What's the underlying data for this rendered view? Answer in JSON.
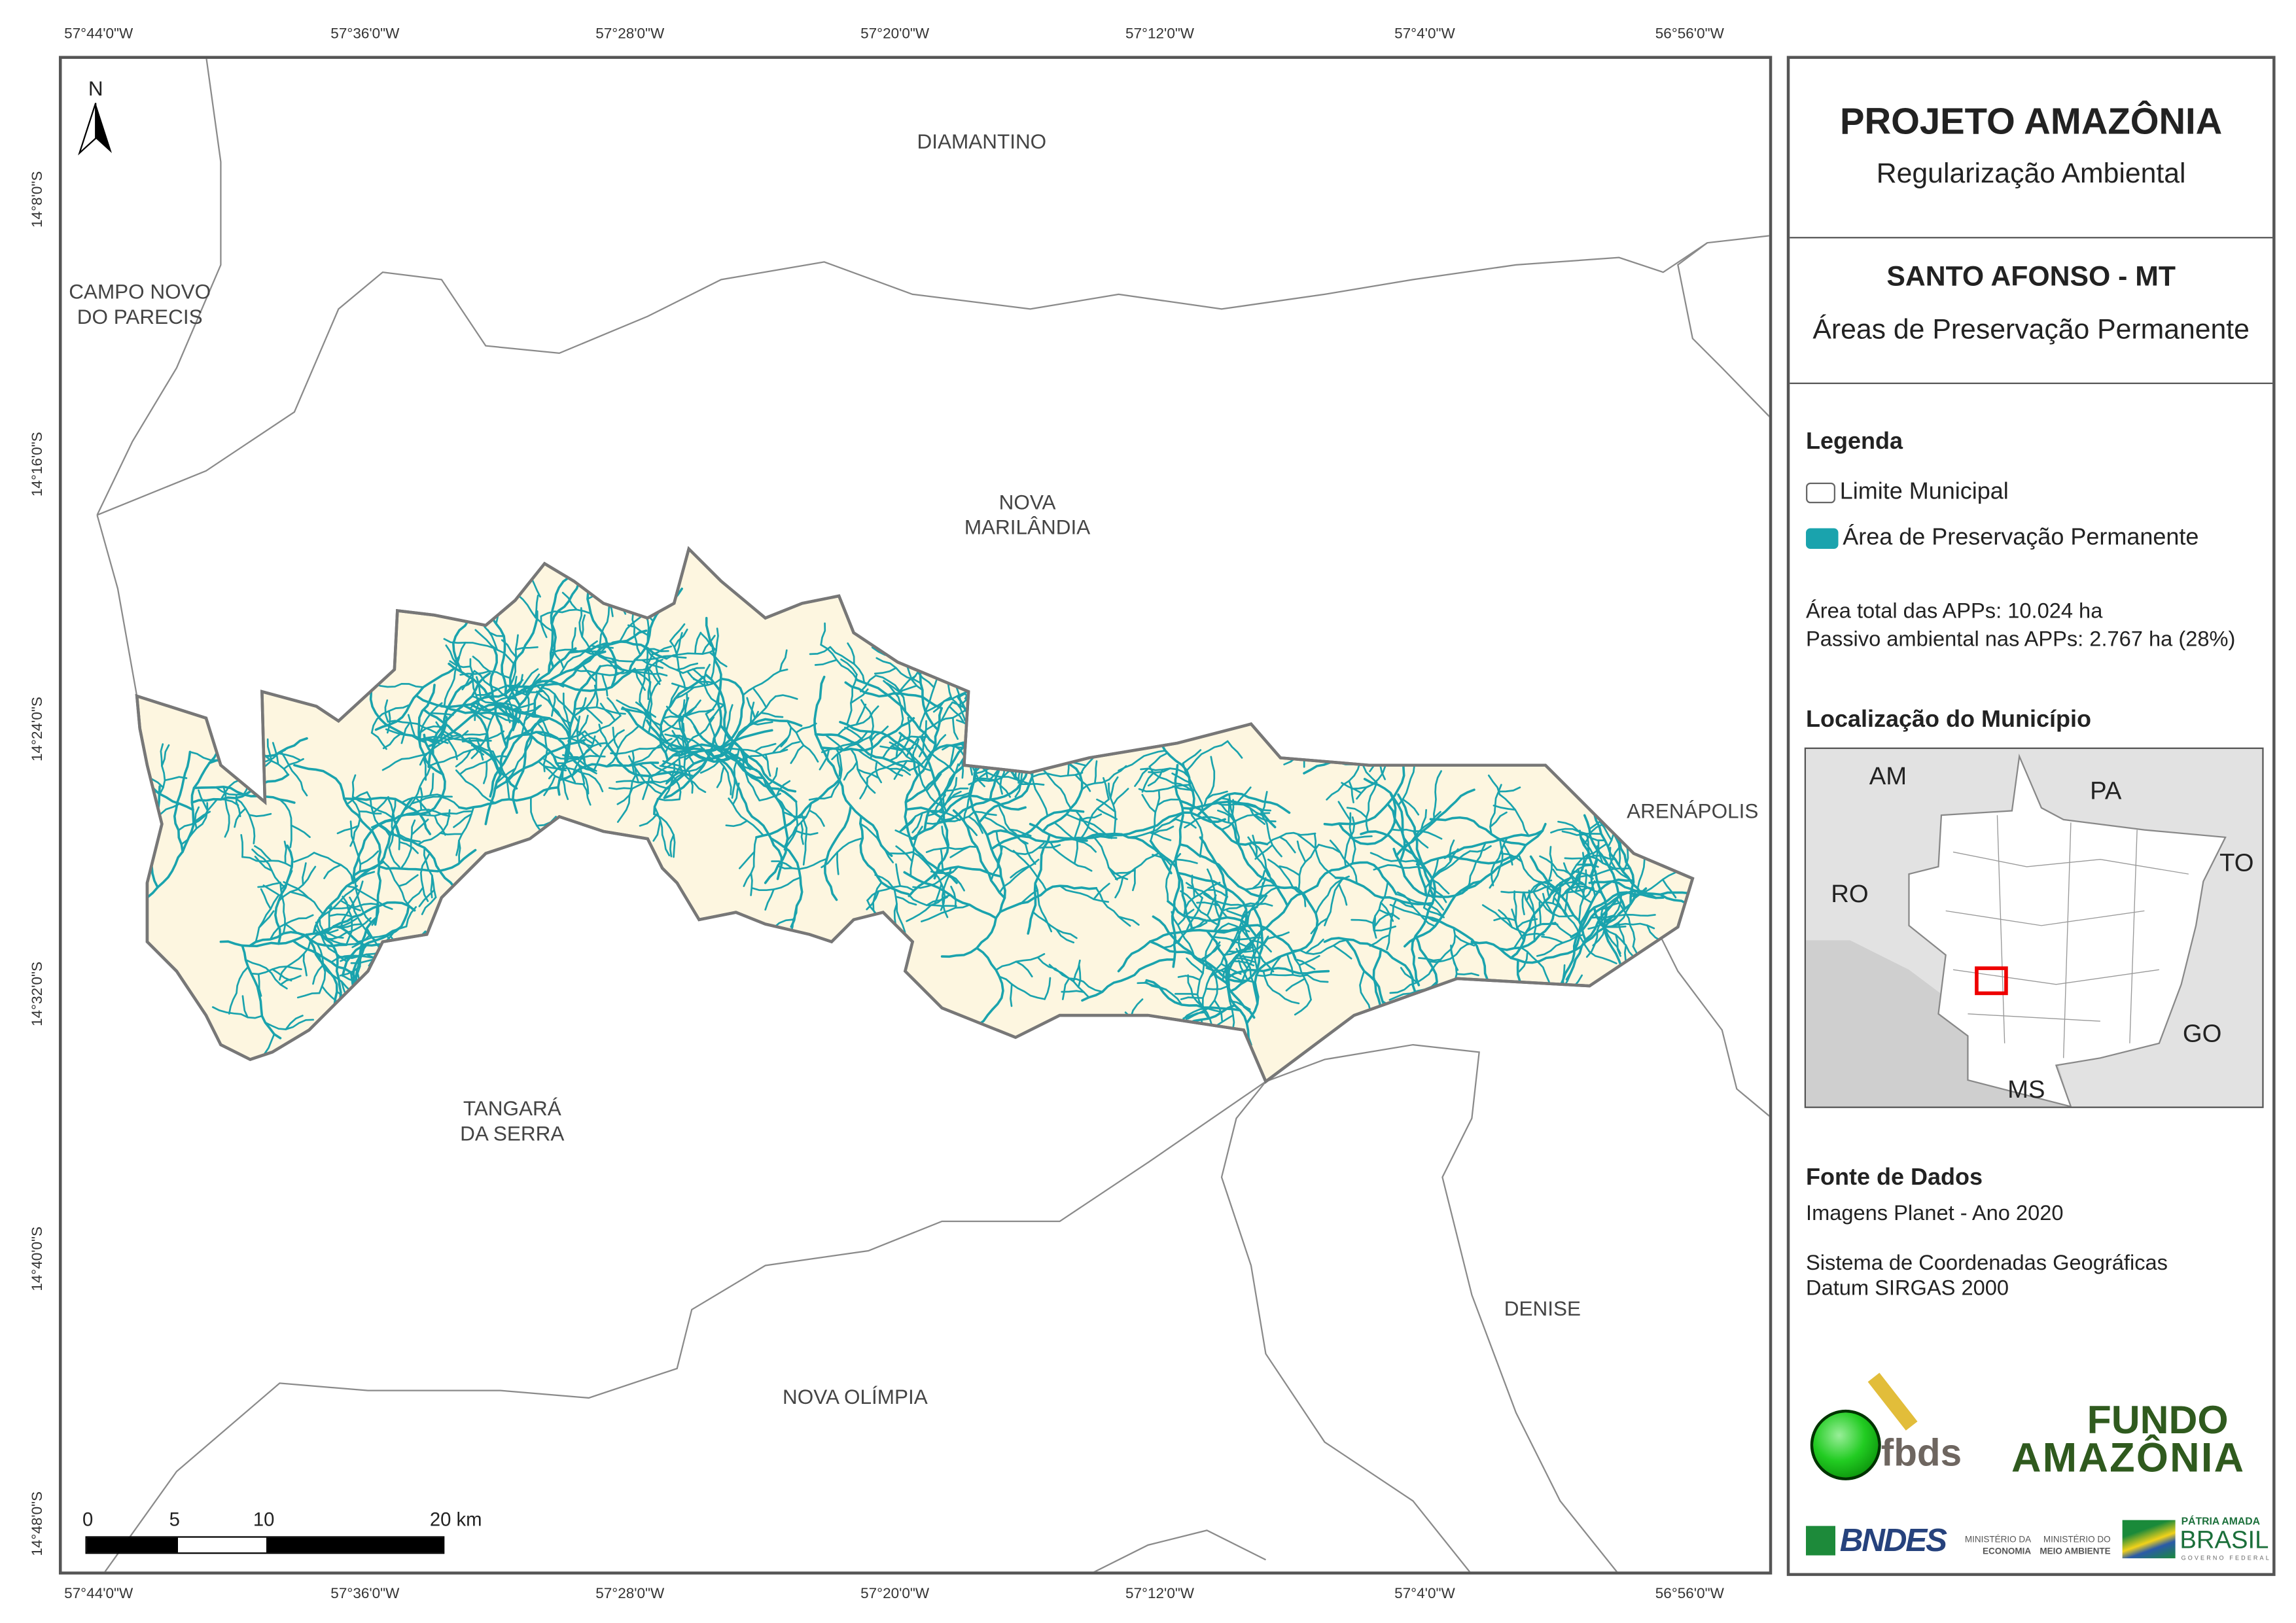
{
  "map": {
    "top_ticks": [
      "57°44'0\"W",
      "57°36'0\"W",
      "57°28'0\"W",
      "57°20'0\"W",
      "57°12'0\"W",
      "57°4'0\"W",
      "56°56'0\"W"
    ],
    "left_ticks": [
      "14°8'0\"S",
      "14°16'0\"S",
      "14°24'0\"S",
      "14°32'0\"S",
      "14°40'0\"S",
      "14°48'0\"S"
    ],
    "north_label": "N",
    "municipalities": {
      "diamantino": "DIAMANTINO",
      "campo_novo_1": "CAMPO NOVO",
      "campo_novo_2": "DO PARECIS",
      "nova_marilandia_1": "NOVA",
      "nova_marilandia_2": "MARILÂNDIA",
      "arenapolis": "ARENÁPOLIS",
      "tangara_1": "TANGARÁ",
      "tangara_2": "DA SERRA",
      "denise": "DENISE",
      "nova_olimpia": "NOVA OLÍMPIA"
    },
    "scale_bar": {
      "labels": [
        "0",
        "5",
        "10",
        "20 km"
      ]
    },
    "colors": {
      "municipality_fill": "#fdf6e0",
      "app_stream": "#1aa3ad",
      "boundary": "#888888"
    }
  },
  "panel": {
    "title": "PROJETO AMAZÔNIA",
    "subtitle": "Regularização Ambiental",
    "municipality": "SANTO AFONSO - MT",
    "theme": "Áreas de Preservação Permanente",
    "legend_title": "Legenda",
    "legend_items": [
      {
        "label": "Limite Municipal",
        "color": "#ffffff"
      },
      {
        "label": "Área de Preservação Permanente",
        "color": "#1aa3ad"
      }
    ],
    "stats": {
      "area_total": "Área total das APPs: 10.024 ha",
      "passivo": "Passivo ambiental nas APPs: 2.767 ha (28%)"
    },
    "location_title": "Localização do Município",
    "location_states": [
      "AM",
      "PA",
      "TO",
      "RO",
      "GO",
      "MS"
    ],
    "sources_title": "Fonte de Dados",
    "sources": [
      "Imagens Planet - Ano 2020",
      "Sistema de Coordenadas Geográficas",
      "Datum SIRGAS 2000"
    ],
    "logos": {
      "fbds": "fbds",
      "fundo_1": "FUNDO",
      "fundo_2": "AMAZÔNIA",
      "bndes": "BNDES",
      "min_economia_1": "MINISTÉRIO DA",
      "min_economia_2": "ECONOMIA",
      "min_ambiente_1": "MINISTÉRIO DO",
      "min_ambiente_2": "MEIO AMBIENTE",
      "patria_1": "PÁTRIA AMADA",
      "patria_2": "BRASIL",
      "patria_3": "GOVERNO FEDERAL"
    }
  }
}
